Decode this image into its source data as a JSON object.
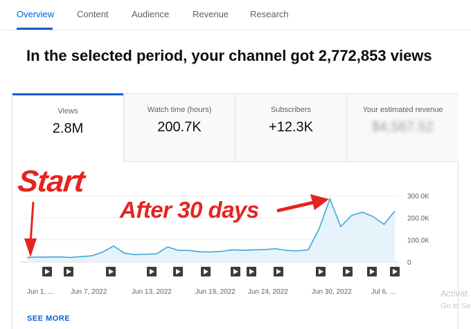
{
  "tabs": [
    {
      "label": "Overview",
      "active": true
    },
    {
      "label": "Content",
      "active": false
    },
    {
      "label": "Audience",
      "active": false
    },
    {
      "label": "Revenue",
      "active": false
    },
    {
      "label": "Research",
      "active": false
    }
  ],
  "headline": "In the selected period, your channel got 2,772,853 views",
  "metrics": [
    {
      "label": "Views",
      "value": "2.8M"
    },
    {
      "label": "Watch time (hours)",
      "value": "200.7K"
    },
    {
      "label": "Subscribers",
      "value": "+12.3K"
    },
    {
      "label": "Your estimated revenue",
      "value": "$4,567.52"
    }
  ],
  "annotations": {
    "start": "Start",
    "after": "After 30 days"
  },
  "colors": {
    "accent": "#065fd4",
    "line": "#3ea6d8",
    "fill": "#e6f3fb",
    "annotation": "#e52420"
  },
  "chart_data": {
    "type": "area",
    "series": [
      {
        "values": [
          20000,
          22000,
          22000,
          23000,
          20000,
          24000,
          28000,
          45000,
          72000,
          40000,
          33000,
          35000,
          37000,
          68000,
          52000,
          52000,
          46000,
          45000,
          48000,
          55000,
          53000,
          55000,
          56000,
          60000,
          52000,
          50000,
          55000,
          150000,
          285000,
          160000,
          210000,
          225000,
          205000,
          170000,
          230000
        ]
      }
    ],
    "x_tick_labels": [
      "Jun 1, ...",
      "Jun 7, 2022",
      "Jun 13, 2022",
      "Jun 19, 2022",
      "Jun 24, 2022",
      "Jun 30, 2022",
      "Jul 6, ..."
    ],
    "y_tick_labels": [
      "300.0K",
      "200.0K",
      "100.0K",
      "0"
    ],
    "ylim": [
      0,
      300000
    ],
    "grid": true
  },
  "video_markers": 13,
  "see_more": "SEE MORE",
  "watermark": {
    "line1": "Activat",
    "line2": "Go to Se"
  }
}
